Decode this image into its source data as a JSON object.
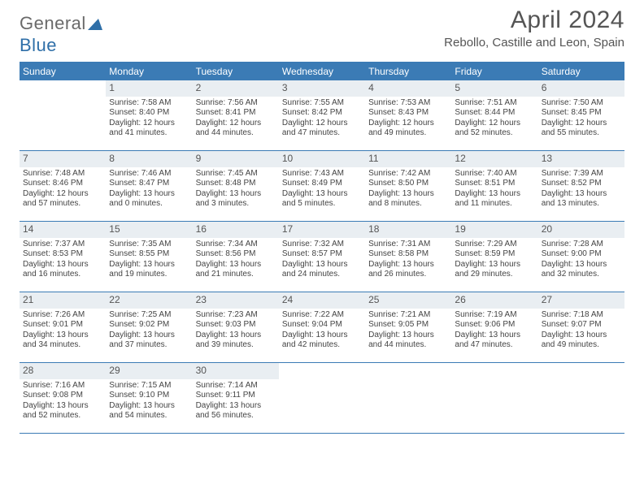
{
  "logo": {
    "part1": "General",
    "part2": "Blue"
  },
  "title": "April 2024",
  "location": "Rebollo, Castille and Leon, Spain",
  "colors": {
    "header_bg": "#3b7bb5",
    "daynum_bg": "#e9eef2",
    "rule": "#3b7bb5",
    "text": "#444444",
    "title_text": "#555555"
  },
  "day_headers": [
    "Sunday",
    "Monday",
    "Tuesday",
    "Wednesday",
    "Thursday",
    "Friday",
    "Saturday"
  ],
  "weeks": [
    [
      {
        "empty": true
      },
      {
        "n": "1",
        "sunrise": "Sunrise: 7:58 AM",
        "sunset": "Sunset: 8:40 PM",
        "dl1": "Daylight: 12 hours",
        "dl2": "and 41 minutes."
      },
      {
        "n": "2",
        "sunrise": "Sunrise: 7:56 AM",
        "sunset": "Sunset: 8:41 PM",
        "dl1": "Daylight: 12 hours",
        "dl2": "and 44 minutes."
      },
      {
        "n": "3",
        "sunrise": "Sunrise: 7:55 AM",
        "sunset": "Sunset: 8:42 PM",
        "dl1": "Daylight: 12 hours",
        "dl2": "and 47 minutes."
      },
      {
        "n": "4",
        "sunrise": "Sunrise: 7:53 AM",
        "sunset": "Sunset: 8:43 PM",
        "dl1": "Daylight: 12 hours",
        "dl2": "and 49 minutes."
      },
      {
        "n": "5",
        "sunrise": "Sunrise: 7:51 AM",
        "sunset": "Sunset: 8:44 PM",
        "dl1": "Daylight: 12 hours",
        "dl2": "and 52 minutes."
      },
      {
        "n": "6",
        "sunrise": "Sunrise: 7:50 AM",
        "sunset": "Sunset: 8:45 PM",
        "dl1": "Daylight: 12 hours",
        "dl2": "and 55 minutes."
      }
    ],
    [
      {
        "n": "7",
        "sunrise": "Sunrise: 7:48 AM",
        "sunset": "Sunset: 8:46 PM",
        "dl1": "Daylight: 12 hours",
        "dl2": "and 57 minutes."
      },
      {
        "n": "8",
        "sunrise": "Sunrise: 7:46 AM",
        "sunset": "Sunset: 8:47 PM",
        "dl1": "Daylight: 13 hours",
        "dl2": "and 0 minutes."
      },
      {
        "n": "9",
        "sunrise": "Sunrise: 7:45 AM",
        "sunset": "Sunset: 8:48 PM",
        "dl1": "Daylight: 13 hours",
        "dl2": "and 3 minutes."
      },
      {
        "n": "10",
        "sunrise": "Sunrise: 7:43 AM",
        "sunset": "Sunset: 8:49 PM",
        "dl1": "Daylight: 13 hours",
        "dl2": "and 5 minutes."
      },
      {
        "n": "11",
        "sunrise": "Sunrise: 7:42 AM",
        "sunset": "Sunset: 8:50 PM",
        "dl1": "Daylight: 13 hours",
        "dl2": "and 8 minutes."
      },
      {
        "n": "12",
        "sunrise": "Sunrise: 7:40 AM",
        "sunset": "Sunset: 8:51 PM",
        "dl1": "Daylight: 13 hours",
        "dl2": "and 11 minutes."
      },
      {
        "n": "13",
        "sunrise": "Sunrise: 7:39 AM",
        "sunset": "Sunset: 8:52 PM",
        "dl1": "Daylight: 13 hours",
        "dl2": "and 13 minutes."
      }
    ],
    [
      {
        "n": "14",
        "sunrise": "Sunrise: 7:37 AM",
        "sunset": "Sunset: 8:53 PM",
        "dl1": "Daylight: 13 hours",
        "dl2": "and 16 minutes."
      },
      {
        "n": "15",
        "sunrise": "Sunrise: 7:35 AM",
        "sunset": "Sunset: 8:55 PM",
        "dl1": "Daylight: 13 hours",
        "dl2": "and 19 minutes."
      },
      {
        "n": "16",
        "sunrise": "Sunrise: 7:34 AM",
        "sunset": "Sunset: 8:56 PM",
        "dl1": "Daylight: 13 hours",
        "dl2": "and 21 minutes."
      },
      {
        "n": "17",
        "sunrise": "Sunrise: 7:32 AM",
        "sunset": "Sunset: 8:57 PM",
        "dl1": "Daylight: 13 hours",
        "dl2": "and 24 minutes."
      },
      {
        "n": "18",
        "sunrise": "Sunrise: 7:31 AM",
        "sunset": "Sunset: 8:58 PM",
        "dl1": "Daylight: 13 hours",
        "dl2": "and 26 minutes."
      },
      {
        "n": "19",
        "sunrise": "Sunrise: 7:29 AM",
        "sunset": "Sunset: 8:59 PM",
        "dl1": "Daylight: 13 hours",
        "dl2": "and 29 minutes."
      },
      {
        "n": "20",
        "sunrise": "Sunrise: 7:28 AM",
        "sunset": "Sunset: 9:00 PM",
        "dl1": "Daylight: 13 hours",
        "dl2": "and 32 minutes."
      }
    ],
    [
      {
        "n": "21",
        "sunrise": "Sunrise: 7:26 AM",
        "sunset": "Sunset: 9:01 PM",
        "dl1": "Daylight: 13 hours",
        "dl2": "and 34 minutes."
      },
      {
        "n": "22",
        "sunrise": "Sunrise: 7:25 AM",
        "sunset": "Sunset: 9:02 PM",
        "dl1": "Daylight: 13 hours",
        "dl2": "and 37 minutes."
      },
      {
        "n": "23",
        "sunrise": "Sunrise: 7:23 AM",
        "sunset": "Sunset: 9:03 PM",
        "dl1": "Daylight: 13 hours",
        "dl2": "and 39 minutes."
      },
      {
        "n": "24",
        "sunrise": "Sunrise: 7:22 AM",
        "sunset": "Sunset: 9:04 PM",
        "dl1": "Daylight: 13 hours",
        "dl2": "and 42 minutes."
      },
      {
        "n": "25",
        "sunrise": "Sunrise: 7:21 AM",
        "sunset": "Sunset: 9:05 PM",
        "dl1": "Daylight: 13 hours",
        "dl2": "and 44 minutes."
      },
      {
        "n": "26",
        "sunrise": "Sunrise: 7:19 AM",
        "sunset": "Sunset: 9:06 PM",
        "dl1": "Daylight: 13 hours",
        "dl2": "and 47 minutes."
      },
      {
        "n": "27",
        "sunrise": "Sunrise: 7:18 AM",
        "sunset": "Sunset: 9:07 PM",
        "dl1": "Daylight: 13 hours",
        "dl2": "and 49 minutes."
      }
    ],
    [
      {
        "n": "28",
        "sunrise": "Sunrise: 7:16 AM",
        "sunset": "Sunset: 9:08 PM",
        "dl1": "Daylight: 13 hours",
        "dl2": "and 52 minutes."
      },
      {
        "n": "29",
        "sunrise": "Sunrise: 7:15 AM",
        "sunset": "Sunset: 9:10 PM",
        "dl1": "Daylight: 13 hours",
        "dl2": "and 54 minutes."
      },
      {
        "n": "30",
        "sunrise": "Sunrise: 7:14 AM",
        "sunset": "Sunset: 9:11 PM",
        "dl1": "Daylight: 13 hours",
        "dl2": "and 56 minutes."
      },
      {
        "empty": true
      },
      {
        "empty": true
      },
      {
        "empty": true
      },
      {
        "empty": true
      }
    ]
  ]
}
